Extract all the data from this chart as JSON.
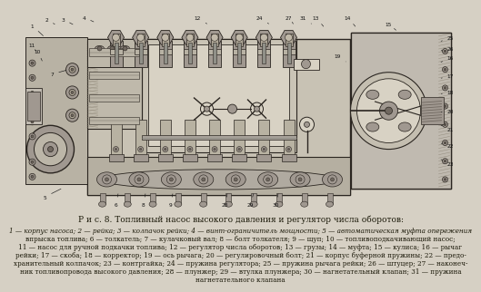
{
  "background_color": "#d6d0c4",
  "title_line": "Р и с. 8. Топливный насос высокого давления и регулятор числа оборотов:",
  "caption_lines": [
    "1 — корпус насоса; 2 — рейка; 3 — колпачок рейки; 4 — винт-ограничитель мощности; 5 — автоматическая муфта опережения",
    "впрыска топлива; 6 — толкатель; 7 — кулачковый вал; 8 — болт толкателя; 9 — щуп; 10 — топливоподкачивающий насос;",
    "11 — насос для ручной подкачки топлива; 12 — регулятор числа оборотов; 13 — грузы; 14 — муфта; 15 — кулиса; 16 — рычаг",
    "рейки; 17 — скоба; 18 — корректор; 19 — ось рычага; 20 — регулировочный болт; 21 — корпус буферной пружины; 22 — предо-",
    "хранительный колпачок; 23 — контргайка; 24 — пружина регулятора; 25 — пружина рычага рейки; 26 — штуцер; 27 — наконеч-",
    "ник топливопровода высокого давления; 28 — плунжер; 29 — втулка плунжера; 30 — нагнетательный клапан; 31 — пружина",
    "нагнетательного клапана"
  ],
  "font_size_title": 6.5,
  "font_size_caption": 5.2,
  "text_color": "#1a1808",
  "line_color": "#2a2520",
  "body_fill": "#c8c2b4",
  "hatch_color": "#888070",
  "dark_fill": "#706860",
  "mid_fill": "#a09890",
  "light_fill": "#d8d2c4"
}
